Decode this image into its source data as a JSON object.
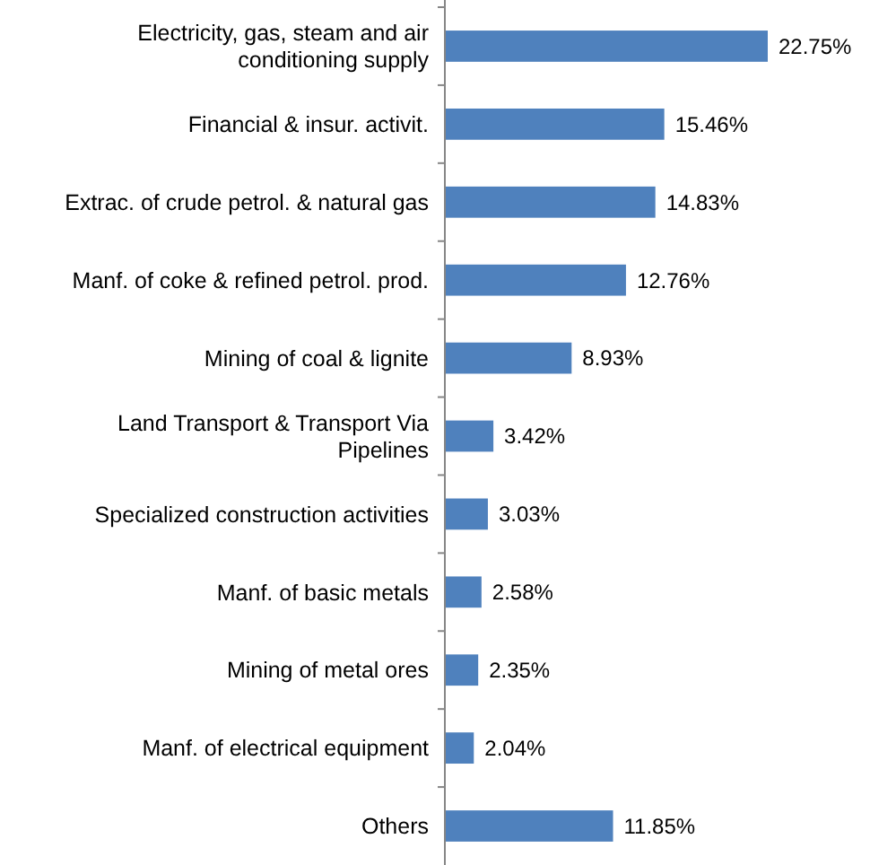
{
  "chart_data": {
    "type": "bar",
    "orientation": "horizontal",
    "color": "#4f81bd",
    "categories": [
      "Electricity, gas, steam and air conditioning supply",
      "Financial & insur. activit.",
      "Extrac. of crude petrol. & natural gas",
      "Manf. of coke & refined petrol. prod.",
      "Mining of coal & lignite",
      "Land Transport & Transport Via Pipelines",
      "Specialized construction activities",
      "Manf. of basic metals",
      "Mining of metal ores",
      "Manf. of electrical equipment",
      "Others"
    ],
    "values": [
      22.75,
      15.46,
      14.83,
      12.76,
      8.93,
      3.42,
      3.03,
      2.58,
      2.35,
      2.04,
      11.85
    ],
    "value_labels": [
      "22.75%",
      "15.46%",
      "14.83%",
      "12.76%",
      "8.93%",
      "3.42%",
      "3.03%",
      "2.58%",
      "2.35%",
      "2.04%",
      "11.85%"
    ]
  }
}
